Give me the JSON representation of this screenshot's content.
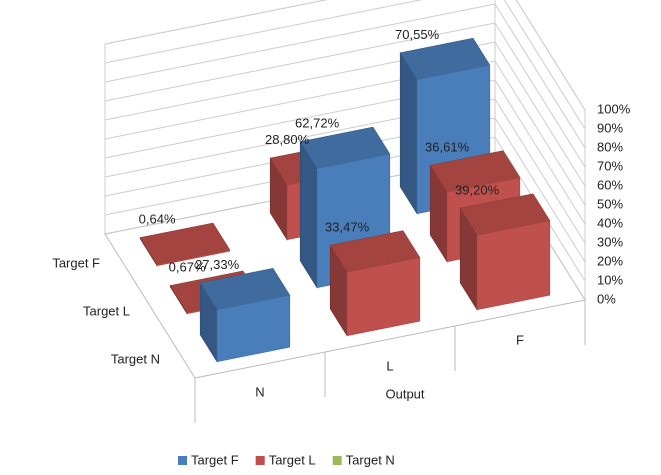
{
  "chart_data": {
    "type": "bar3d",
    "categories": [
      "N",
      "L",
      "F"
    ],
    "x_label": "Output",
    "series": [
      {
        "name": "Target F",
        "color": "#4a7ebb",
        "values": [
          0.64,
          28.8,
          70.55
        ],
        "value_labels": [
          "0,64%",
          "28,80%",
          "70,55%"
        ],
        "point_colors": [
          "#c0504d",
          "#c0504d",
          "#4a7ebb"
        ]
      },
      {
        "name": "Target L",
        "color": "#c0504d",
        "values": [
          0.67,
          62.72,
          36.61
        ],
        "value_labels": [
          "0,67%",
          "62,72%",
          "36,61%"
        ],
        "point_colors": [
          "#c0504d",
          "#4a7ebb",
          "#c0504d"
        ]
      },
      {
        "name": "Target N",
        "color": "#9bbb59",
        "values": [
          27.33,
          33.47,
          39.2
        ],
        "value_labels": [
          "27,33%",
          "33,47%",
          "39,20%"
        ],
        "point_colors": [
          "#4a7ebb",
          "#c0504d",
          "#c0504d"
        ]
      }
    ],
    "ylim": [
      0,
      100
    ],
    "yticks": [
      {
        "value": 0,
        "label": "0%"
      },
      {
        "value": 10,
        "label": "10%"
      },
      {
        "value": 20,
        "label": "20%"
      },
      {
        "value": 30,
        "label": "30%"
      },
      {
        "value": 40,
        "label": "40%"
      },
      {
        "value": 50,
        "label": "50%"
      },
      {
        "value": 60,
        "label": "60%"
      },
      {
        "value": 70,
        "label": "70%"
      },
      {
        "value": 80,
        "label": "80%"
      },
      {
        "value": 90,
        "label": "90%"
      },
      {
        "value": 100,
        "label": "100%"
      }
    ],
    "grid": true,
    "legend": "bottom"
  }
}
